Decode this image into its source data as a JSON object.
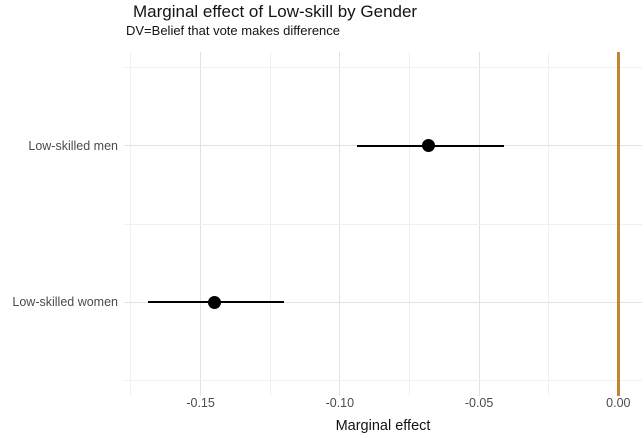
{
  "header": {
    "title": "Marginal effect of Low-skill by Gender",
    "subtitle": "DV=Belief that vote makes difference"
  },
  "chart_data": {
    "type": "scatter",
    "subtype": "horizontal-pointrange",
    "title": "Marginal effect of Low-skill by Gender",
    "subtitle": "DV=Belief that vote makes difference",
    "xlabel": "Marginal effect",
    "ylabel": "",
    "legend": "none",
    "grid": "major+minor",
    "categories": [
      "Low-skilled men",
      "Low-skilled women"
    ],
    "series": [
      {
        "name": "marginal_effect",
        "estimates": [
          -0.068,
          -0.145
        ],
        "ci_low": [
          -0.094,
          -0.169
        ],
        "ci_high": [
          -0.041,
          -0.12
        ]
      }
    ],
    "xlim": [
      -0.1775,
      0.0085
    ],
    "x_ticks": [
      {
        "value": -0.15,
        "label": "-0.15"
      },
      {
        "value": -0.1,
        "label": "-0.10"
      },
      {
        "value": -0.05,
        "label": "-0.05"
      },
      {
        "value": 0.0,
        "label": "0.00"
      }
    ],
    "x_minor_ticks": [
      -0.175,
      -0.125,
      -0.075,
      -0.025
    ],
    "reference_line": {
      "x": 0.0
    },
    "colors": {
      "point": "#000000",
      "ci": "#000000",
      "reference": "#c28532"
    }
  }
}
